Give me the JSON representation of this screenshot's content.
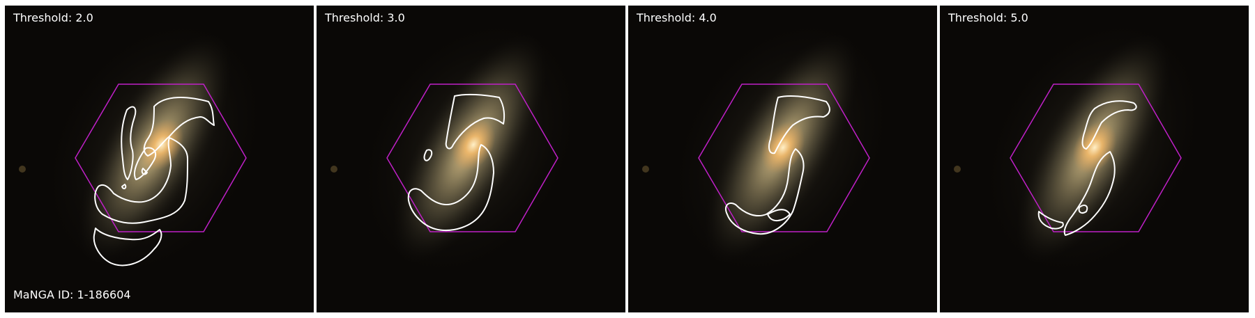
{
  "figure": {
    "manga_id_label": "MaNGA ID: 1-186604",
    "panels": [
      {
        "threshold_label": "Threshold: 2.0"
      },
      {
        "threshold_label": "Threshold: 3.0"
      },
      {
        "threshold_label": "Threshold: 4.0"
      },
      {
        "threshold_label": "Threshold: 5.0"
      }
    ],
    "colors": {
      "hexagon": "#c020c8",
      "contour": "#ffffff",
      "sky": "#0a0806",
      "galaxy_core": "#f3c27a",
      "galaxy_disk": "#9a8a63"
    }
  }
}
